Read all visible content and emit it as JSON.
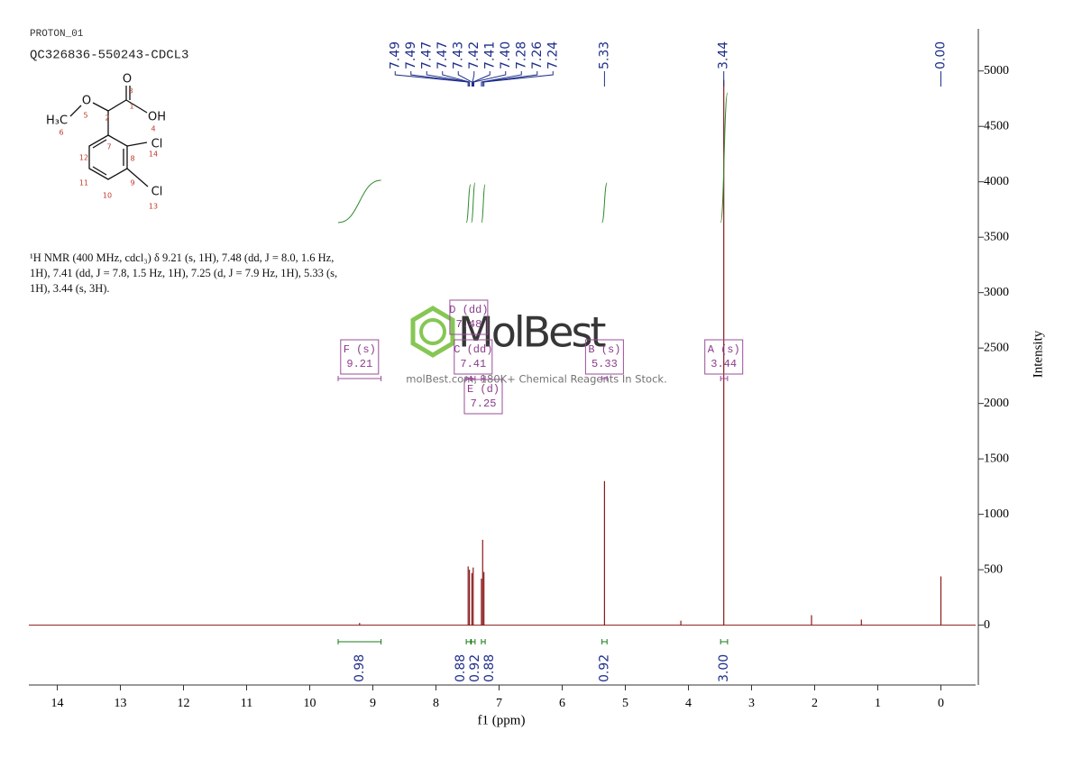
{
  "header": {
    "experiment": "PROTON_01",
    "sample": "QC326836-550243-CDCL3"
  },
  "structure": {
    "atom_labels": [
      "O",
      "OH",
      "H₃C",
      "O",
      "Cl",
      "Cl"
    ],
    "atom_numbers": [
      "1",
      "2",
      "3",
      "4",
      "5",
      "6",
      "7",
      "8",
      "9",
      "10",
      "11",
      "12",
      "13",
      "14"
    ]
  },
  "description": "¹H NMR (400 MHz, cdcl₃) δ 9.21 (s, 1H), 7.48 (dd, J = 8.0, 1.6 Hz, 1H), 7.41 (dd, J = 7.8, 1.5 Hz, 1H), 7.25 (d, J = 7.9 Hz, 1H), 5.33 (s, 1H), 3.44 (s, 3H).",
  "watermark": {
    "brand": "MolBest",
    "tagline": "molBest.com, 180K+ Chemical Reagents In Stock."
  },
  "chart_data": {
    "type": "nmr",
    "x_label": "f1 (ppm)",
    "y_label": "Intensity",
    "xlim": [
      14.45,
      -0.55
    ],
    "xticks": [
      14,
      13,
      12,
      11,
      10,
      9,
      8,
      7,
      6,
      5,
      4,
      3,
      2,
      1,
      0
    ],
    "ylim": [
      -540,
      5380
    ],
    "yticks": [
      0,
      500,
      1000,
      1500,
      2000,
      2500,
      3000,
      3500,
      4000,
      4500,
      5000
    ],
    "color": "#8b1a1a",
    "peaks": {
      "x": [
        9.21,
        7.49,
        7.47,
        7.43,
        7.41,
        7.28,
        7.26,
        7.24,
        5.33,
        4.12,
        3.44,
        2.05,
        1.26,
        0.0
      ],
      "values": [
        20,
        530,
        500,
        470,
        520,
        420,
        770,
        480,
        1300,
        40,
        4920,
        90,
        50,
        440
      ]
    },
    "peak_labels": {
      "values": [
        7.49,
        7.49,
        7.47,
        7.47,
        7.43,
        7.42,
        7.41,
        7.4,
        7.28,
        7.26,
        7.24,
        5.33,
        3.44,
        0.0
      ],
      "value_labels": [
        "7.49",
        "7.49",
        "7.47",
        "7.47",
        "7.43",
        "7.42",
        "7.41",
        "7.40",
        "7.28",
        "7.26",
        "7.24",
        "5.33",
        "3.44",
        "0.00"
      ]
    },
    "multiplets": [
      {
        "name": "F (s)",
        "shift": 9.21,
        "range": [
          9.55,
          8.87
        ]
      },
      {
        "name": "D (dd)",
        "shift": 7.48,
        "range": [
          7.52,
          7.45
        ]
      },
      {
        "name": "C (dd)",
        "shift": 7.41,
        "range": [
          7.44,
          7.38
        ]
      },
      {
        "name": "E (d)",
        "shift": 7.25,
        "range": [
          7.28,
          7.22
        ]
      },
      {
        "name": "B (s)",
        "shift": 5.33,
        "range": [
          5.37,
          5.29
        ]
      },
      {
        "name": "A (s)",
        "shift": 3.44,
        "range": [
          3.49,
          3.38
        ]
      }
    ],
    "integrals": {
      "values": [
        0.98,
        0.88,
        0.92,
        0.88,
        0.92,
        3.0
      ],
      "value_labels": [
        "0.98",
        "0.88",
        "0.92",
        "0.88",
        "0.92",
        "3.00"
      ],
      "ranges": [
        [
          9.55,
          8.87
        ],
        [
          7.52,
          7.45
        ],
        [
          7.44,
          7.38
        ],
        [
          7.28,
          7.22
        ],
        [
          5.37,
          5.29
        ],
        [
          3.49,
          3.38
        ]
      ]
    }
  }
}
